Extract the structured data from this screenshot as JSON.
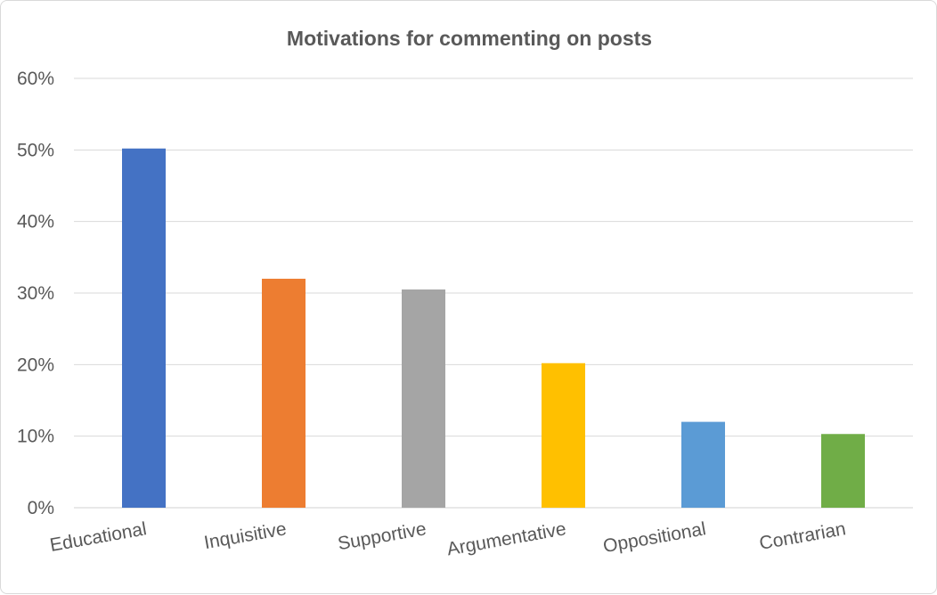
{
  "chart_data": {
    "type": "bar",
    "title": "Motivations for commenting on posts",
    "xlabel": "",
    "ylabel": "",
    "categories": [
      "Educational",
      "Inquisitive",
      "Supportive",
      "Argumentative",
      "Oppositional",
      "Contrarian"
    ],
    "values": [
      0.502,
      0.32,
      0.305,
      0.202,
      0.12,
      0.103
    ],
    "colors": [
      "#4472C4",
      "#ED7D31",
      "#A5A5A5",
      "#FFC000",
      "#5B9BD5",
      "#70AD47"
    ],
    "ylim": [
      0,
      0.6
    ],
    "yticks": [
      "0%",
      "10%",
      "20%",
      "30%",
      "40%",
      "50%",
      "60%"
    ],
    "grid": true,
    "legend": "none"
  }
}
